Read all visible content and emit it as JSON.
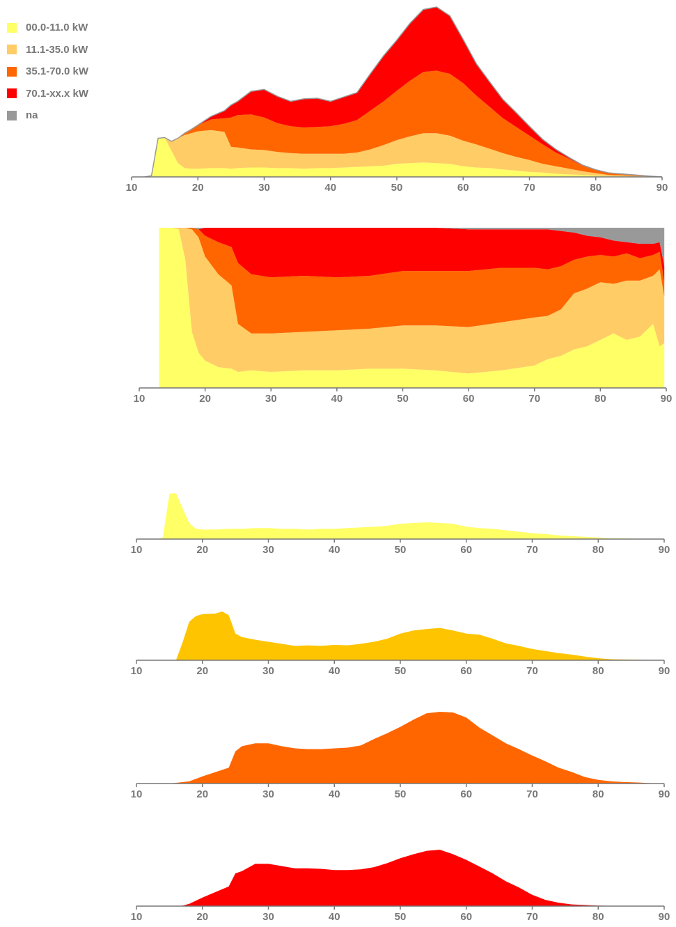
{
  "legend": [
    {
      "label": "00.0-11.0 kW",
      "color": "#ffff66"
    },
    {
      "label": "11.1-35.0 kW",
      "color": "#ffcc66"
    },
    {
      "label": "35.1-70.0 kW",
      "color": "#ff6600"
    },
    {
      "label": "70.1-xx.x kW",
      "color": "#ff0000"
    },
    {
      "label": "na",
      "color": "#999999"
    }
  ],
  "colors": {
    "c0": "#ffff66",
    "c1": "#ffcc66",
    "c2": "#ff6600",
    "c3": "#ff0000",
    "na": "#999999",
    "c1_single": "#ffc400",
    "axis": "#777777"
  },
  "chart_data": [
    {
      "type": "area",
      "stacked": true,
      "xlim": [
        10,
        90
      ],
      "xticks": [
        10,
        20,
        30,
        40,
        50,
        60,
        70,
        80,
        90
      ],
      "series_ref": [
        "00.0-11.0 kW",
        "11.1-35.0 kW",
        "35.1-70.0 kW",
        "70.1-xx.x kW"
      ],
      "x": [
        12,
        13,
        14,
        15,
        16,
        17,
        18,
        19,
        20,
        22,
        24,
        25,
        26,
        28,
        30,
        32,
        34,
        36,
        38,
        40,
        42,
        44,
        46,
        48,
        50,
        52,
        54,
        56,
        58,
        60,
        62,
        64,
        66,
        68,
        70,
        72,
        74,
        76,
        78,
        80,
        82,
        84,
        86,
        88,
        90
      ],
      "y": [
        [
          0,
          2,
          62,
          63,
          42,
          22,
          14,
          13,
          13,
          14,
          14,
          13,
          14,
          15,
          15,
          14,
          14,
          13,
          14,
          14,
          15,
          16,
          17,
          18,
          21,
          22,
          23,
          22,
          21,
          17,
          15,
          14,
          12,
          10,
          8,
          7,
          5,
          4,
          3,
          2,
          1,
          1,
          0.5,
          0.3,
          0
        ],
        [
          0,
          0,
          0,
          0,
          15,
          40,
          53,
          57,
          60,
          61,
          58,
          35,
          33,
          29,
          28,
          26,
          24,
          24,
          23,
          23,
          22,
          23,
          27,
          33,
          38,
          43,
          47,
          48,
          45,
          41,
          37,
          31,
          26,
          22,
          19,
          14,
          12,
          9,
          6,
          4,
          2,
          1.5,
          1,
          0.5,
          0
        ],
        [
          0,
          0,
          0,
          0,
          0,
          0,
          3,
          6,
          10,
          17,
          22,
          47,
          52,
          56,
          52,
          46,
          43,
          42,
          43,
          44,
          48,
          52,
          62,
          70,
          79,
          89,
          98,
          100,
          99,
          92,
          78,
          67,
          56,
          48,
          39,
          31,
          22,
          16,
          9,
          5,
          3,
          2,
          1.5,
          0.5,
          0
        ],
        [
          0,
          0,
          0,
          0,
          0,
          0,
          0,
          0,
          0,
          5,
          12,
          20,
          22,
          37,
          45,
          43,
          40,
          46,
          46,
          40,
          43,
          44,
          59,
          73,
          81,
          92,
          100,
          102,
          93,
          70,
          51,
          40,
          30,
          23,
          15,
          8,
          5,
          2,
          1,
          0.5,
          0.3,
          0.2,
          0.1,
          0,
          0
        ]
      ],
      "na": [
        0,
        0,
        0,
        0,
        0,
        0,
        0,
        0,
        0,
        0,
        0,
        0,
        0,
        0,
        0,
        0,
        0,
        0,
        0,
        0,
        0,
        0,
        0,
        0,
        0,
        0,
        0,
        0,
        0,
        0,
        0,
        0,
        0,
        0,
        0,
        0,
        0,
        0,
        0,
        0,
        0,
        0,
        0,
        0,
        0
      ]
    },
    {
      "type": "area",
      "stacked": true,
      "normalized": true,
      "xlim": [
        10,
        90
      ],
      "xticks": [
        10,
        20,
        30,
        40,
        50,
        60,
        70,
        80,
        90
      ],
      "series_ref": [
        "00.0-11.0 kW",
        "11.1-35.0 kW",
        "35.1-70.0 kW",
        "70.1-xx.x kW",
        "na"
      ],
      "x": [
        13,
        15,
        16,
        17,
        18,
        19,
        20,
        22,
        24,
        25,
        27,
        30,
        35,
        40,
        45,
        50,
        55,
        60,
        65,
        70,
        72,
        74,
        76,
        78,
        80,
        82,
        84,
        86,
        88,
        89,
        89.7
      ],
      "c0": [
        1.0,
        1.0,
        0.99,
        0.8,
        0.35,
        0.22,
        0.17,
        0.13,
        0.12,
        0.1,
        0.11,
        0.1,
        0.11,
        0.11,
        0.12,
        0.12,
        0.11,
        0.09,
        0.11,
        0.14,
        0.18,
        0.2,
        0.24,
        0.26,
        0.3,
        0.34,
        0.3,
        0.32,
        0.4,
        0.26,
        0.28
      ],
      "c1": [
        0.0,
        0.0,
        0.01,
        0.2,
        0.64,
        0.72,
        0.65,
        0.58,
        0.52,
        0.3,
        0.23,
        0.24,
        0.24,
        0.25,
        0.25,
        0.27,
        0.28,
        0.29,
        0.3,
        0.3,
        0.27,
        0.29,
        0.35,
        0.36,
        0.36,
        0.31,
        0.37,
        0.35,
        0.3,
        0.48,
        0.29
      ],
      "c2": [
        0.0,
        0.0,
        0.0,
        0.0,
        0.01,
        0.05,
        0.13,
        0.2,
        0.24,
        0.38,
        0.37,
        0.35,
        0.35,
        0.33,
        0.33,
        0.34,
        0.34,
        0.35,
        0.34,
        0.31,
        0.29,
        0.27,
        0.21,
        0.2,
        0.17,
        0.17,
        0.17,
        0.14,
        0.13,
        0.11,
        0.09
      ],
      "c3": [
        0.0,
        0.0,
        0.0,
        0.0,
        0.0,
        0.0,
        0.05,
        0.09,
        0.12,
        0.22,
        0.29,
        0.31,
        0.3,
        0.31,
        0.3,
        0.27,
        0.27,
        0.26,
        0.24,
        0.24,
        0.25,
        0.22,
        0.17,
        0.13,
        0.11,
        0.1,
        0.07,
        0.09,
        0.07,
        0.06,
        0.1
      ],
      "na": [
        0.0,
        0.0,
        0.0,
        0.0,
        0.0,
        0.01,
        0.0,
        0.0,
        0.0,
        0.0,
        0.0,
        0.0,
        0.0,
        0.0,
        0.0,
        0.0,
        0.0,
        0.01,
        0.01,
        0.01,
        0.01,
        0.02,
        0.03,
        0.05,
        0.06,
        0.08,
        0.09,
        0.1,
        0.1,
        0.09,
        0.24
      ]
    },
    {
      "type": "area",
      "series_ref": "00.0-11.0 kW",
      "xlim": [
        10,
        90
      ],
      "xticks": [
        10,
        20,
        30,
        40,
        50,
        60,
        70,
        80,
        90
      ],
      "x": [
        13,
        14,
        15,
        16,
        17,
        18,
        19,
        20,
        22,
        24,
        26,
        28,
        30,
        32,
        34,
        36,
        38,
        40,
        42,
        44,
        46,
        48,
        50,
        52,
        54,
        56,
        58,
        60,
        62,
        64,
        66,
        68,
        70,
        72,
        74,
        76,
        78,
        80,
        82,
        84,
        86,
        88,
        90
      ],
      "y": [
        0,
        2,
        62,
        63,
        42,
        22,
        14,
        13,
        13,
        14,
        14,
        15,
        15,
        14,
        14,
        13,
        14,
        14,
        15,
        16,
        17,
        18,
        21,
        22,
        23,
        22,
        21,
        17,
        15,
        14,
        12,
        10,
        8,
        7,
        5,
        4,
        3,
        2,
        1,
        1,
        0.5,
        0.3,
        0
      ]
    },
    {
      "type": "area",
      "series_ref": "11.1-35.0 kW",
      "xlim": [
        10,
        90
      ],
      "xticks": [
        10,
        20,
        30,
        40,
        50,
        60,
        70,
        80,
        90
      ],
      "x": [
        15,
        16,
        17,
        18,
        19,
        20,
        22,
        23,
        24,
        25,
        26,
        28,
        30,
        32,
        34,
        36,
        38,
        40,
        42,
        44,
        46,
        48,
        50,
        52,
        54,
        56,
        58,
        60,
        62,
        64,
        66,
        68,
        70,
        72,
        74,
        76,
        78,
        80,
        82,
        84,
        86,
        88,
        90
      ],
      "y": [
        0,
        0,
        35,
        75,
        86,
        90,
        91,
        95,
        88,
        52,
        45,
        40,
        36,
        32,
        28,
        29,
        28,
        30,
        29,
        32,
        36,
        42,
        52,
        58,
        61,
        63,
        58,
        52,
        50,
        42,
        33,
        28,
        22,
        18,
        14,
        11,
        7,
        4,
        2,
        1.5,
        1,
        0.5,
        0
      ]
    },
    {
      "type": "area",
      "series_ref": "35.1-70.0 kW",
      "xlim": [
        10,
        90
      ],
      "xticks": [
        10,
        20,
        30,
        40,
        50,
        60,
        70,
        80,
        90
      ],
      "x": [
        15,
        16,
        18,
        20,
        22,
        24,
        25,
        26,
        28,
        30,
        32,
        34,
        36,
        38,
        40,
        42,
        44,
        46,
        48,
        50,
        52,
        54,
        56,
        58,
        60,
        62,
        64,
        66,
        68,
        70,
        72,
        74,
        76,
        78,
        80,
        82,
        84,
        86,
        88,
        90
      ],
      "y": [
        0,
        1,
        3,
        10,
        16,
        22,
        45,
        52,
        56,
        56,
        52,
        49,
        48,
        48,
        49,
        50,
        53,
        62,
        70,
        79,
        89,
        98,
        100,
        99,
        92,
        78,
        67,
        56,
        48,
        39,
        31,
        22,
        16,
        9,
        5,
        3,
        2,
        1.5,
        0.5,
        0
      ]
    },
    {
      "type": "area",
      "series_ref": "70.1-xx.x kW",
      "xlim": [
        10,
        90
      ],
      "xticks": [
        10,
        20,
        30,
        40,
        50,
        60,
        70,
        80,
        90
      ],
      "x": [
        16,
        17,
        18,
        20,
        22,
        24,
        25,
        26,
        28,
        30,
        32,
        34,
        36,
        38,
        40,
        42,
        44,
        46,
        48,
        50,
        52,
        54,
        56,
        58,
        60,
        62,
        64,
        66,
        68,
        70,
        72,
        74,
        76,
        78,
        80,
        82,
        84,
        86,
        88,
        90
      ],
      "y": [
        0,
        1,
        4,
        15,
        25,
        35,
        58,
        62,
        75,
        75,
        71,
        67,
        67,
        66,
        64,
        64,
        65,
        69,
        76,
        85,
        92,
        98,
        100,
        92,
        82,
        70,
        58,
        44,
        33,
        20,
        11,
        6,
        3,
        2,
        1,
        0.5,
        0.3,
        0.2,
        0.1,
        0
      ]
    }
  ]
}
